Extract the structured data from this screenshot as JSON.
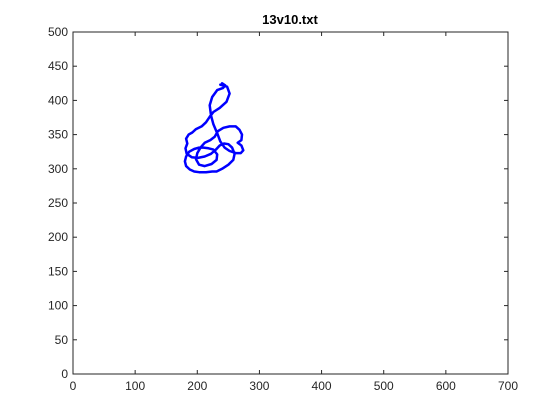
{
  "chart_data": {
    "type": "line",
    "title": "13v10.txt",
    "xlabel": "",
    "ylabel": "",
    "xlim": [
      0,
      700
    ],
    "ylim": [
      0,
      500
    ],
    "xticks": [
      0,
      100,
      200,
      300,
      400,
      500,
      600,
      700
    ],
    "yticks": [
      0,
      50,
      100,
      150,
      200,
      250,
      300,
      350,
      400,
      450,
      500
    ],
    "grid": false,
    "legend": "none",
    "line_color": "#0000ff",
    "series": [
      {
        "x": [
          237,
          248,
          252,
          247,
          236,
          226,
          220,
          214,
          207,
          198,
          192,
          186,
          182,
          184,
          181,
          183,
          191,
          201,
          212,
          222,
          230,
          236,
          243,
          250,
          256,
          260,
          258,
          250,
          240,
          231,
          224,
          214,
          203,
          195,
          188,
          182,
          180,
          182,
          187,
          195,
          203,
          210,
          218,
          226,
          232,
          231,
          223,
          212,
          203,
          198,
          200,
          206,
          212,
          221,
          228,
          233,
          242,
          252,
          262,
          268,
          272,
          271,
          265,
          271,
          274,
          270,
          262,
          252,
          244,
          237,
          232,
          226,
          222,
          220,
          224,
          232,
          241,
          245,
          240
        ],
        "y": [
          423,
          420,
          410,
          398,
          389,
          383,
          376,
          368,
          362,
          358,
          353,
          350,
          344,
          337,
          330,
          322,
          317,
          316,
          318,
          322,
          328,
          334,
          337,
          336,
          331,
          322,
          313,
          306,
          300,
          296,
          296,
          295,
          295,
          296,
          299,
          304,
          311,
          318,
          325,
          329,
          331,
          331,
          330,
          328,
          321,
          313,
          307,
          304,
          306,
          314,
          323,
          332,
          338,
          342,
          347,
          355,
          360,
          362,
          362,
          357,
          350,
          342,
          338,
          334,
          327,
          323,
          323,
          326,
          331,
          340,
          352,
          365,
          378,
          393,
          405,
          415,
          418,
          422,
          425
        ]
      }
    ]
  }
}
